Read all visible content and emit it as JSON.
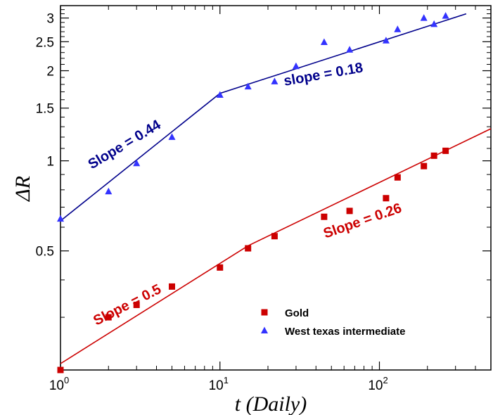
{
  "chart_data": {
    "type": "scatter",
    "xscale": "log",
    "yscale": "log",
    "xlim": [
      1,
      500
    ],
    "ylim": [
      0.2,
      3.3
    ],
    "xlabel": "t (Daily)",
    "ylabel": "ΔR",
    "x_ticks": [
      {
        "value": 1,
        "base": "10",
        "exp": "0"
      },
      {
        "value": 10,
        "base": "10",
        "exp": "1"
      },
      {
        "value": 100,
        "base": "10",
        "exp": "2"
      }
    ],
    "y_ticks": [
      {
        "value": 0.5,
        "label": "0.5"
      },
      {
        "value": 1,
        "label": "1"
      },
      {
        "value": 1.5,
        "label": "1.5"
      },
      {
        "value": 2,
        "label": "2"
      },
      {
        "value": 2.5,
        "label": "2.5"
      },
      {
        "value": 3,
        "label": "3"
      }
    ],
    "series": [
      {
        "name": "Gold",
        "marker": "square",
        "color": "#cc0000",
        "x": [
          1,
          2,
          3,
          5,
          10,
          15,
          22,
          45,
          65,
          110,
          130,
          190,
          220,
          260
        ],
        "y": [
          0.2,
          0.3,
          0.33,
          0.38,
          0.44,
          0.51,
          0.56,
          0.65,
          0.68,
          0.75,
          0.88,
          0.96,
          1.04,
          1.08
        ],
        "fit": [
          [
            1,
            0.21
          ],
          [
            15,
            0.52
          ],
          [
            500,
            1.28
          ]
        ]
      },
      {
        "name": "West texas intermediate",
        "marker": "triangle",
        "color": "#3333ff",
        "line_color": "#00008b",
        "x": [
          1,
          2,
          3,
          5,
          10,
          15,
          22,
          30,
          45,
          65,
          110,
          130,
          190,
          220,
          260
        ],
        "y": [
          0.64,
          0.79,
          0.98,
          1.2,
          1.66,
          1.77,
          1.84,
          2.07,
          2.49,
          2.35,
          2.52,
          2.75,
          3.0,
          2.86,
          3.05
        ],
        "fit": [
          [
            1,
            0.63
          ],
          [
            10,
            1.68
          ],
          [
            350,
            3.1
          ]
        ]
      }
    ],
    "annotations": [
      {
        "text": "Slope = 0.44",
        "color": "#00008b",
        "at": [
          2.6,
          1.1
        ],
        "rotate": -31
      },
      {
        "text": "slope = 0.18",
        "color": "#00008b",
        "at": [
          45,
          1.88
        ],
        "rotate": -10
      },
      {
        "text": "Slope = 0.5",
        "color": "#cc0000",
        "at": [
          2.7,
          0.32
        ],
        "rotate": -27
      },
      {
        "text": "Slope = 0.26",
        "color": "#cc0000",
        "at": [
          80,
          0.61
        ],
        "rotate": -19
      }
    ],
    "legend": {
      "position": "bottom-right",
      "entries": [
        {
          "label": "Gold",
          "marker": "square",
          "color": "#cc0000"
        },
        {
          "label": "West texas intermediate",
          "marker": "triangle",
          "color": "#3333ff"
        }
      ]
    }
  }
}
